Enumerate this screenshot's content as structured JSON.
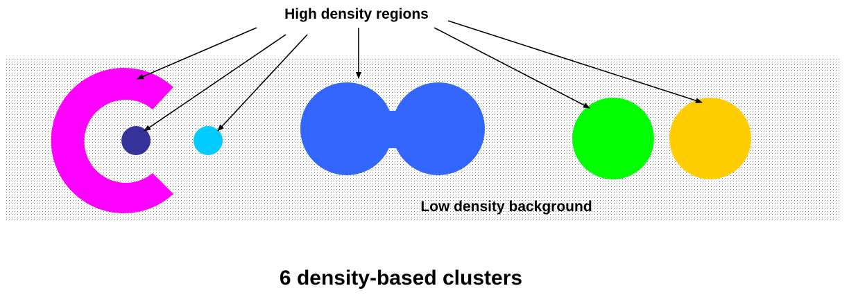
{
  "diagram": {
    "top_label": "High density regions",
    "background_label": "Low density background",
    "caption": "6 density-based clusters"
  },
  "colors": {
    "background_dots": "#808080",
    "magenta_cluster": "#FF00FF",
    "navy_cluster": "#333399",
    "cyan_cluster": "#00CCFF",
    "blue_cluster": "#3366FF",
    "green_cluster": "#00FF00",
    "yellow_cluster": "#FFCC00",
    "arrow": "#000000"
  }
}
